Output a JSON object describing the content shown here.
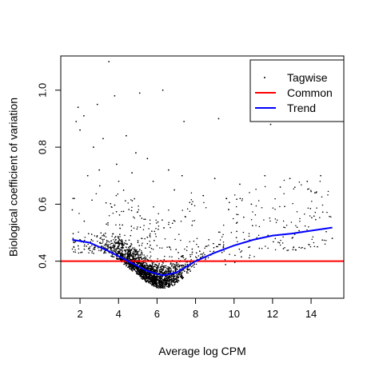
{
  "chart_data": {
    "type": "scatter",
    "title": "",
    "xlabel": "Average log CPM",
    "ylabel": "Biological coefficient of variation",
    "xlim": [
      1.0,
      15.7
    ],
    "ylim": [
      0.27,
      1.12
    ],
    "x_ticks": [
      2,
      4,
      6,
      8,
      10,
      12,
      14
    ],
    "y_ticks": [
      0.4,
      0.6,
      0.8,
      1.0
    ],
    "x_tick_labels": [
      "2",
      "4",
      "6",
      "8",
      "10",
      "12",
      "14"
    ],
    "y_tick_labels": [
      "0.4",
      "0.6",
      "0.8",
      "1.0"
    ],
    "grid": false,
    "legend_position": "top-right",
    "series": [
      {
        "name": "Tagwise",
        "kind": "points",
        "color": "#000000",
        "points": [
          [
            3.5,
            1.1
          ],
          [
            2.9,
            0.95
          ],
          [
            1.9,
            0.94
          ],
          [
            2.2,
            0.91
          ],
          [
            1.8,
            0.89
          ],
          [
            2.0,
            0.86
          ],
          [
            6.3,
            1.0
          ],
          [
            5.1,
            0.99
          ],
          [
            3.8,
            0.98
          ],
          [
            7.4,
            0.89
          ],
          [
            9.2,
            0.9
          ],
          [
            11.9,
            0.88
          ],
          [
            2.7,
            0.8
          ],
          [
            4.4,
            0.84
          ],
          [
            3.2,
            0.83
          ],
          [
            4.9,
            0.78
          ],
          [
            5.5,
            0.76
          ],
          [
            6.6,
            0.72
          ],
          [
            7.3,
            0.7
          ],
          [
            9.0,
            0.69
          ],
          [
            10.3,
            0.67
          ],
          [
            11.6,
            0.7
          ],
          [
            12.9,
            0.69
          ],
          [
            13.8,
            0.68
          ],
          [
            14.5,
            0.7
          ],
          [
            15.1,
            0.48
          ],
          [
            14.2,
            0.64
          ],
          [
            12.4,
            0.66
          ],
          [
            10.9,
            0.6
          ],
          [
            9.6,
            0.62
          ],
          [
            8.4,
            0.63
          ],
          [
            7.8,
            0.6
          ],
          [
            6.9,
            0.65
          ],
          [
            5.8,
            0.68
          ],
          [
            4.7,
            0.71
          ],
          [
            3.9,
            0.74
          ],
          [
            3.0,
            0.72
          ],
          [
            2.4,
            0.7
          ],
          [
            1.7,
            0.62
          ],
          [
            1.6,
            0.58
          ]
        ]
      },
      {
        "name": "Common",
        "kind": "line",
        "color": "#ff0000",
        "y": 0.4
      },
      {
        "name": "Trend",
        "kind": "line",
        "color": "#0000ff",
        "x": [
          1.6,
          2.5,
          3.5,
          4.5,
          5.5,
          6.3,
          7.0,
          8.0,
          9.0,
          10.0,
          11.0,
          12.0,
          13.0,
          14.0,
          15.1
        ],
        "y": [
          0.475,
          0.465,
          0.435,
          0.4,
          0.365,
          0.35,
          0.36,
          0.4,
          0.43,
          0.455,
          0.475,
          0.49,
          0.497,
          0.507,
          0.518
        ]
      }
    ]
  },
  "legend": {
    "items": [
      {
        "label": "Tagwise",
        "symbol": "point",
        "color": "#000000"
      },
      {
        "label": "Common",
        "symbol": "line",
        "color": "#ff0000"
      },
      {
        "label": "Trend",
        "symbol": "line",
        "color": "#0000ff"
      }
    ]
  }
}
